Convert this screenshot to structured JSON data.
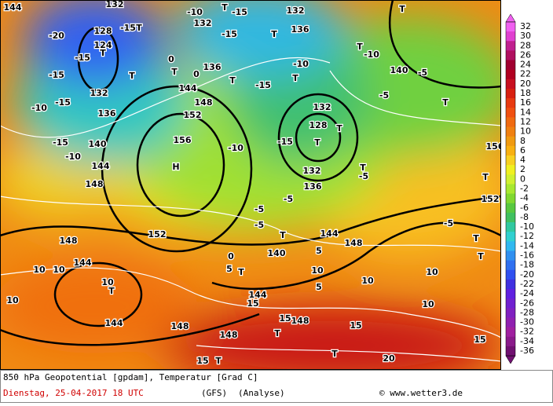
{
  "colorbar": {
    "labels": [
      32,
      30,
      28,
      26,
      24,
      22,
      20,
      18,
      16,
      14,
      12,
      10,
      8,
      6,
      4,
      2,
      0,
      -2,
      -4,
      -6,
      -8,
      -10,
      -12,
      -14,
      -16,
      -18,
      -20,
      -22,
      -24,
      -26,
      -28,
      -30,
      -32,
      -34,
      -36
    ],
    "colors": [
      "#f060f0",
      "#e040d0",
      "#c02090",
      "#b01060",
      "#a00030",
      "#b00020",
      "#c81020",
      "#d82010",
      "#e83a10",
      "#f05010",
      "#f06a10",
      "#f08010",
      "#f09a10",
      "#f8b010",
      "#f8d020",
      "#f0f020",
      "#d0f030",
      "#a8e830",
      "#80d830",
      "#58c840",
      "#40c060",
      "#30c8a0",
      "#30d0d0",
      "#30b8f0",
      "#3090f0",
      "#3070f0",
      "#3050f0",
      "#4030e0",
      "#6020e0",
      "#7020d0",
      "#8020c0",
      "#9020b0",
      "#a020a0",
      "#8a1a8a",
      "#701070"
    ]
  },
  "map": {
    "labels": [
      "144",
      "132",
      "-10",
      "T",
      "-15",
      "132",
      "T",
      "-20",
      "128",
      "-15",
      "T",
      "132",
      "-15",
      "T",
      "136",
      "124",
      "T",
      "-15",
      "-15",
      "T",
      "0",
      "T",
      "0",
      "136",
      "T",
      "-15",
      "-10",
      "T",
      "T",
      "-10",
      "140",
      "-5",
      "144",
      "148",
      "132",
      "-15",
      "-10",
      "136",
      "152",
      "132",
      "-5",
      "T",
      "128",
      "T",
      "T",
      "156",
      "H",
      "-15",
      "140",
      "-10",
      "-15",
      "-10",
      "144",
      "148",
      "132",
      "136",
      "T",
      "-5",
      "156",
      "T",
      "152",
      "-5",
      "-5",
      "-5",
      "T",
      "144",
      "152",
      "148",
      "-5",
      "0",
      "5",
      "T",
      "140",
      "5",
      "148",
      "T",
      "T",
      "10",
      "10",
      "144",
      "10",
      "T",
      "10",
      "144",
      "10",
      "5",
      "10",
      "10",
      "144",
      "15",
      "10",
      "148",
      "15",
      "148",
      "15",
      "15",
      "148",
      "T",
      "15",
      "T",
      "20",
      "T"
    ]
  },
  "footer": {
    "line1": "850 hPa Geopotential [gpdam], Temperatur [Grad C]",
    "date": "Dienstag, 25-04-2017  18 UTC",
    "model": "(GFS)",
    "run": "(Analyse)",
    "copyright": "© www.wetter3.de"
  }
}
